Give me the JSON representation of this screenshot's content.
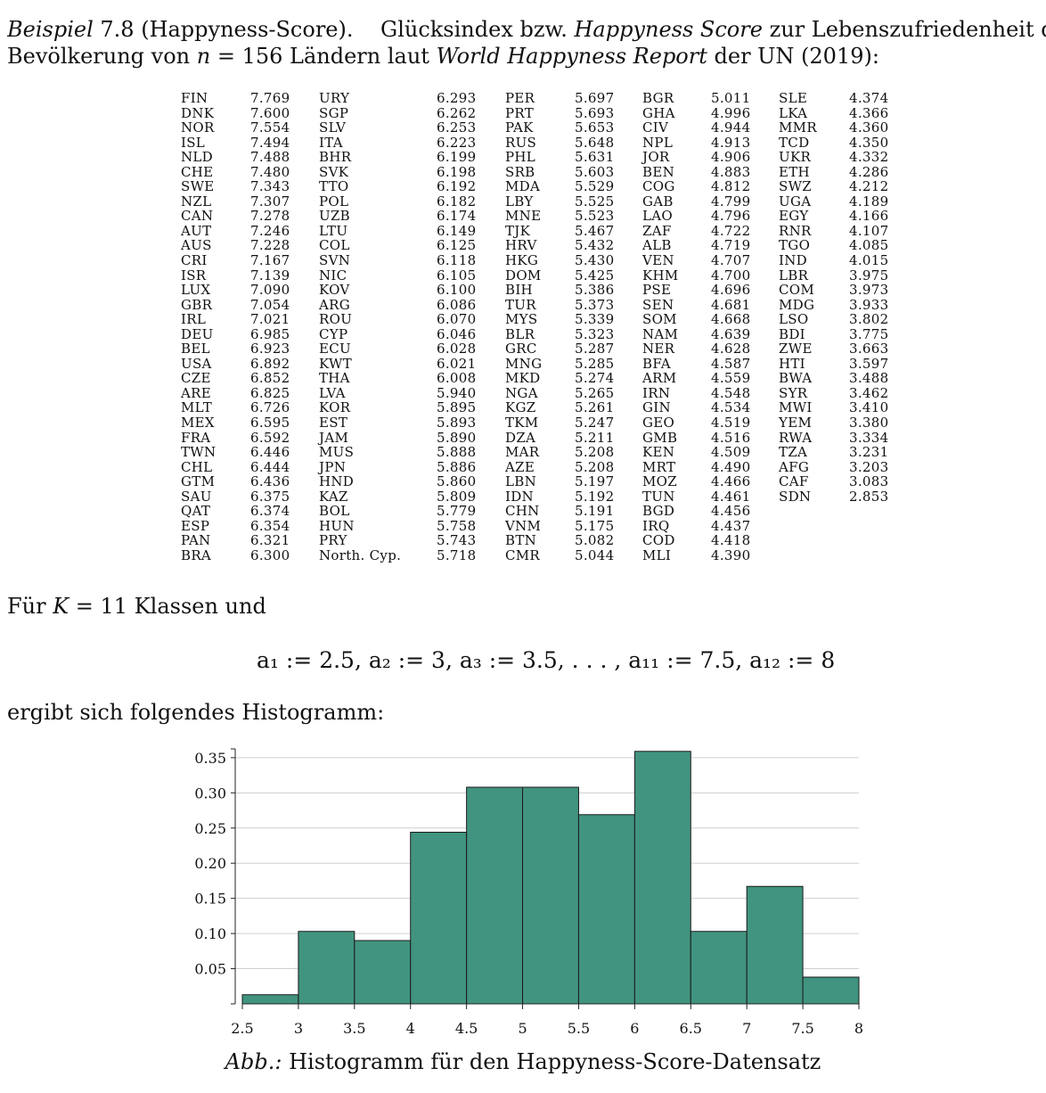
{
  "intro": {
    "label": "Beispiel",
    "number": "7.8",
    "title": "(Happyness-Score).",
    "line1_text": "Glücksindex bzw.",
    "line1_italic": "Happyness Score",
    "line1_tail": "zur Lebenszufriedenheit der",
    "line2_a": "Bevölkerung von",
    "line2_n": "n",
    "line2_eq": " = 156 Ländern laut ",
    "line2_italic": "World Happyness Report",
    "line2_tail": "der UN (2019):"
  },
  "countries": [
    [
      "FIN",
      "7.769"
    ],
    [
      "DNK",
      "7.600"
    ],
    [
      "NOR",
      "7.554"
    ],
    [
      "ISL",
      "7.494"
    ],
    [
      "NLD",
      "7.488"
    ],
    [
      "CHE",
      "7.480"
    ],
    [
      "SWE",
      "7.343"
    ],
    [
      "NZL",
      "7.307"
    ],
    [
      "CAN",
      "7.278"
    ],
    [
      "AUT",
      "7.246"
    ],
    [
      "AUS",
      "7.228"
    ],
    [
      "CRI",
      "7.167"
    ],
    [
      "ISR",
      "7.139"
    ],
    [
      "LUX",
      "7.090"
    ],
    [
      "GBR",
      "7.054"
    ],
    [
      "IRL",
      "7.021"
    ],
    [
      "DEU",
      "6.985"
    ],
    [
      "BEL",
      "6.923"
    ],
    [
      "USA",
      "6.892"
    ],
    [
      "CZE",
      "6.852"
    ],
    [
      "ARE",
      "6.825"
    ],
    [
      "MLT",
      "6.726"
    ],
    [
      "MEX",
      "6.595"
    ],
    [
      "FRA",
      "6.592"
    ],
    [
      "TWN",
      "6.446"
    ],
    [
      "CHL",
      "6.444"
    ],
    [
      "GTM",
      "6.436"
    ],
    [
      "SAU",
      "6.375"
    ],
    [
      "QAT",
      "6.374"
    ],
    [
      "ESP",
      "6.354"
    ],
    [
      "PAN",
      "6.321"
    ],
    [
      "BRA",
      "6.300"
    ],
    [
      "URY",
      "6.293"
    ],
    [
      "SGP",
      "6.262"
    ],
    [
      "SLV",
      "6.253"
    ],
    [
      "ITA",
      "6.223"
    ],
    [
      "BHR",
      "6.199"
    ],
    [
      "SVK",
      "6.198"
    ],
    [
      "TTO",
      "6.192"
    ],
    [
      "POL",
      "6.182"
    ],
    [
      "UZB",
      "6.174"
    ],
    [
      "LTU",
      "6.149"
    ],
    [
      "COL",
      "6.125"
    ],
    [
      "SVN",
      "6.118"
    ],
    [
      "NIC",
      "6.105"
    ],
    [
      "KOV",
      "6.100"
    ],
    [
      "ARG",
      "6.086"
    ],
    [
      "ROU",
      "6.070"
    ],
    [
      "CYP",
      "6.046"
    ],
    [
      "ECU",
      "6.028"
    ],
    [
      "KWT",
      "6.021"
    ],
    [
      "THA",
      "6.008"
    ],
    [
      "LVA",
      "5.940"
    ],
    [
      "KOR",
      "5.895"
    ],
    [
      "EST",
      "5.893"
    ],
    [
      "JAM",
      "5.890"
    ],
    [
      "MUS",
      "5.888"
    ],
    [
      "JPN",
      "5.886"
    ],
    [
      "HND",
      "5.860"
    ],
    [
      "KAZ",
      "5.809"
    ],
    [
      "BOL",
      "5.779"
    ],
    [
      "HUN",
      "5.758"
    ],
    [
      "PRY",
      "5.743"
    ],
    [
      "North. Cyp.",
      "5.718"
    ],
    [
      "PER",
      "5.697"
    ],
    [
      "PRT",
      "5.693"
    ],
    [
      "PAK",
      "5.653"
    ],
    [
      "RUS",
      "5.648"
    ],
    [
      "PHL",
      "5.631"
    ],
    [
      "SRB",
      "5.603"
    ],
    [
      "MDA",
      "5.529"
    ],
    [
      "LBY",
      "5.525"
    ],
    [
      "MNE",
      "5.523"
    ],
    [
      "TJK",
      "5.467"
    ],
    [
      "HRV",
      "5.432"
    ],
    [
      "HKG",
      "5.430"
    ],
    [
      "DOM",
      "5.425"
    ],
    [
      "BIH",
      "5.386"
    ],
    [
      "TUR",
      "5.373"
    ],
    [
      "MYS",
      "5.339"
    ],
    [
      "BLR",
      "5.323"
    ],
    [
      "GRC",
      "5.287"
    ],
    [
      "MNG",
      "5.285"
    ],
    [
      "MKD",
      "5.274"
    ],
    [
      "NGA",
      "5.265"
    ],
    [
      "KGZ",
      "5.261"
    ],
    [
      "TKM",
      "5.247"
    ],
    [
      "DZA",
      "5.211"
    ],
    [
      "MAR",
      "5.208"
    ],
    [
      "AZE",
      "5.208"
    ],
    [
      "LBN",
      "5.197"
    ],
    [
      "IDN",
      "5.192"
    ],
    [
      "CHN",
      "5.191"
    ],
    [
      "VNM",
      "5.175"
    ],
    [
      "BTN",
      "5.082"
    ],
    [
      "CMR",
      "5.044"
    ],
    [
      "BGR",
      "5.011"
    ],
    [
      "GHA",
      "4.996"
    ],
    [
      "CIV",
      "4.944"
    ],
    [
      "NPL",
      "4.913"
    ],
    [
      "JOR",
      "4.906"
    ],
    [
      "BEN",
      "4.883"
    ],
    [
      "COG",
      "4.812"
    ],
    [
      "GAB",
      "4.799"
    ],
    [
      "LAO",
      "4.796"
    ],
    [
      "ZAF",
      "4.722"
    ],
    [
      "ALB",
      "4.719"
    ],
    [
      "VEN",
      "4.707"
    ],
    [
      "KHM",
      "4.700"
    ],
    [
      "PSE",
      "4.696"
    ],
    [
      "SEN",
      "4.681"
    ],
    [
      "SOM",
      "4.668"
    ],
    [
      "NAM",
      "4.639"
    ],
    [
      "NER",
      "4.628"
    ],
    [
      "BFA",
      "4.587"
    ],
    [
      "ARM",
      "4.559"
    ],
    [
      "IRN",
      "4.548"
    ],
    [
      "GIN",
      "4.534"
    ],
    [
      "GEO",
      "4.519"
    ],
    [
      "GMB",
      "4.516"
    ],
    [
      "KEN",
      "4.509"
    ],
    [
      "MRT",
      "4.490"
    ],
    [
      "MOZ",
      "4.466"
    ],
    [
      "TUN",
      "4.461"
    ],
    [
      "BGD",
      "4.456"
    ],
    [
      "IRQ",
      "4.437"
    ],
    [
      "COD",
      "4.418"
    ],
    [
      "MLI",
      "4.390"
    ],
    [
      "SLE",
      "4.374"
    ],
    [
      "LKA",
      "4.366"
    ],
    [
      "MMR",
      "4.360"
    ],
    [
      "TCD",
      "4.350"
    ],
    [
      "UKR",
      "4.332"
    ],
    [
      "ETH",
      "4.286"
    ],
    [
      "SWZ",
      "4.212"
    ],
    [
      "UGA",
      "4.189"
    ],
    [
      "EGY",
      "4.166"
    ],
    [
      "RNR",
      "4.107"
    ],
    [
      "TGO",
      "4.085"
    ],
    [
      "IND",
      "4.015"
    ],
    [
      "LBR",
      "3.975"
    ],
    [
      "COM",
      "3.973"
    ],
    [
      "MDG",
      "3.933"
    ],
    [
      "LSO",
      "3.802"
    ],
    [
      "BDI",
      "3.775"
    ],
    [
      "ZWE",
      "3.663"
    ],
    [
      "HTI",
      "3.597"
    ],
    [
      "BWA",
      "3.488"
    ],
    [
      "SYR",
      "3.462"
    ],
    [
      "MWI",
      "3.410"
    ],
    [
      "YEM",
      "3.380"
    ],
    [
      "RWA",
      "3.334"
    ],
    [
      "TZA",
      "3.231"
    ],
    [
      "AFG",
      "3.203"
    ],
    [
      "CAF",
      "3.083"
    ],
    [
      "SDN",
      "2.853"
    ]
  ],
  "text": {
    "fuer": "Für",
    "k_var": "K",
    "k_eq": " = 11 Klassen und",
    "formula": "a₁ := 2.5, a₂ := 3, a₃ := 3.5, . . . , a₁₁ := 7.5, a₁₂ := 8",
    "ergibt": "ergibt sich folgendes Histogramm:",
    "caption_label": "Abb.:",
    "caption_text": "Histogramm für den Happyness-Score-Datensatz"
  },
  "chart_data": {
    "type": "bar",
    "bins": [
      [
        2.5,
        3
      ],
      [
        3,
        3.5
      ],
      [
        3.5,
        4
      ],
      [
        4,
        4.5
      ],
      [
        4.5,
        5
      ],
      [
        5,
        5.5
      ],
      [
        5.5,
        6
      ],
      [
        6,
        6.5
      ],
      [
        6.5,
        7
      ],
      [
        7,
        7.5
      ],
      [
        7.5,
        8
      ]
    ],
    "values": [
      0.013,
      0.103,
      0.09,
      0.244,
      0.308,
      0.308,
      0.269,
      0.359,
      0.103,
      0.167,
      0.038
    ],
    "xticks": [
      "2.5",
      "3",
      "3.5",
      "4",
      "4.5",
      "5",
      "5.5",
      "6",
      "6.5",
      "7",
      "7.5",
      "8"
    ],
    "yticks": [
      "0.05",
      "0.10",
      "0.15",
      "0.20",
      "0.25",
      "0.30",
      "0.35"
    ],
    "xlim": [
      2.5,
      8
    ],
    "ylim": [
      0,
      0.36
    ],
    "bar_color": "#41947f",
    "grid": true
  }
}
